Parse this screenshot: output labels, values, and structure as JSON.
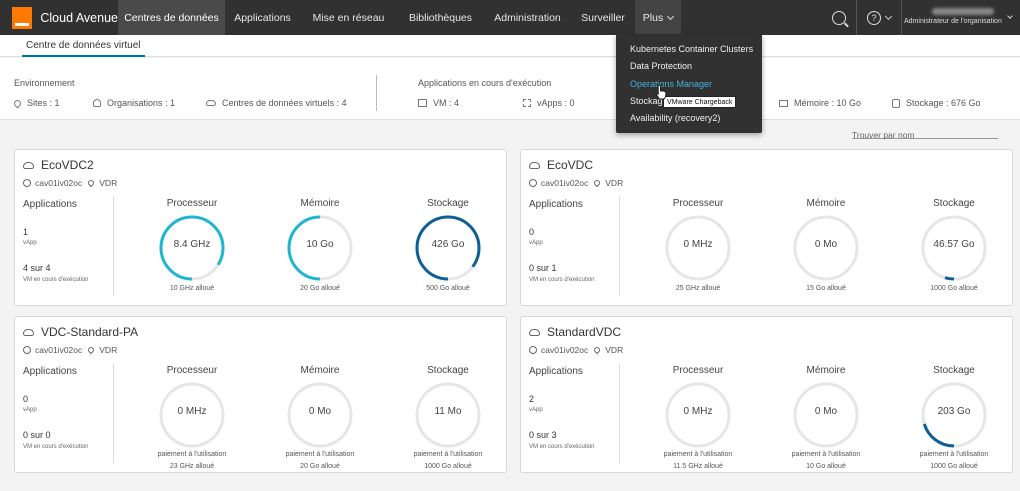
{
  "header": {
    "brand_title": "Cloud Avenue",
    "nav": [
      {
        "label": "Centres de données",
        "active": true
      },
      {
        "label": "Applications"
      },
      {
        "label": "Mise en réseau"
      },
      {
        "label": "Bibliothèques"
      },
      {
        "label": "Administration"
      },
      {
        "label": "Surveiller"
      },
      {
        "label": "Plus"
      }
    ],
    "user_role": "Administrateur de l'organisation"
  },
  "subnav": {
    "tab": "Centre de données virtuel"
  },
  "summary": {
    "env_label": "Environnement",
    "sites": "Sites : 1",
    "organisations": "Organisations : 1",
    "vdcs": "Centres de données virtuels : 4",
    "apps_label": "Applications en cours d'exécution",
    "vm": "VM : 4",
    "vapps": "vApps : 0",
    "memory": "Mémoire : 10 Go",
    "storage": "Stockage : 676 Go"
  },
  "filter": {
    "placeholder": "Trouver par nom"
  },
  "dropdown": {
    "items": [
      "Kubernetes Container Clusters",
      "Data Protection",
      "Operations Manager",
      "Stockage",
      "Availability (recovery2)"
    ],
    "tooltip": "VMware Chargeback"
  },
  "cards": [
    {
      "name": "EcoVDC2",
      "site": "cav01iv02oc",
      "type": "VDR",
      "apps_title": "Applications",
      "vapp_count": "1",
      "vapp_label": "vApp",
      "vm_count": "4 sur 4",
      "vm_label": "VM en cours d'exécution",
      "metrics": [
        {
          "title": "Processeur",
          "value": "8.4 GHz",
          "sub1": "10 GHz alloué",
          "sub2": "",
          "fraction": 0.84,
          "color": "#1fb6cf"
        },
        {
          "title": "Mémoire",
          "value": "10 Go",
          "sub1": "20 Go alloué",
          "sub2": "",
          "fraction": 0.5,
          "color": "#1fb6cf"
        },
        {
          "title": "Stockage",
          "value": "426 Go",
          "sub1": "500 Go alloué",
          "sub2": "",
          "fraction": 0.852,
          "color": "#0f5f96"
        }
      ]
    },
    {
      "name": "EcoVDC",
      "site": "cav01iv02oc",
      "type": "VDR",
      "apps_title": "Applications",
      "vapp_count": "0",
      "vapp_label": "vApp",
      "vm_count": "0 sur 1",
      "vm_label": "VM en cours d'exécution",
      "metrics": [
        {
          "title": "Processeur",
          "value": "0 MHz",
          "sub1": "25 GHz alloué",
          "sub2": "",
          "fraction": 0,
          "color": "#1fb6cf"
        },
        {
          "title": "Mémoire",
          "value": "0 Mo",
          "sub1": "15 Go alloué",
          "sub2": "",
          "fraction": 0,
          "color": "#1fb6cf"
        },
        {
          "title": "Stockage",
          "value": "46.57 Go",
          "sub1": "1000 Go alloué",
          "sub2": "",
          "fraction": 0.047,
          "color": "#0f5f96"
        }
      ]
    },
    {
      "name": "VDC-Standard-PA",
      "site": "cav01iv02oc",
      "type": "VDR",
      "apps_title": "Applications",
      "vapp_count": "0",
      "vapp_label": "vApp",
      "vm_count": "0 sur 0",
      "vm_label": "VM en cours d'exécution",
      "metrics": [
        {
          "title": "Processeur",
          "value": "0 MHz",
          "sub1": "paiement à l'utilisation",
          "sub2": "23 GHz alloué",
          "fraction": 0,
          "color": "#1fb6cf"
        },
        {
          "title": "Mémoire",
          "value": "0 Mo",
          "sub1": "paiement à l'utilisation",
          "sub2": "20 Go alloué",
          "fraction": 0,
          "color": "#1fb6cf"
        },
        {
          "title": "Stockage",
          "value": "11 Mo",
          "sub1": "paiement à l'utilisation",
          "sub2": "1000 Go alloué",
          "fraction": 0,
          "color": "#0f5f96"
        }
      ]
    },
    {
      "name": "StandardVDC",
      "site": "cav01iv02oc",
      "type": "VDR",
      "apps_title": "Applications",
      "vapp_count": "2",
      "vapp_label": "vApp",
      "vm_count": "0 sur 3",
      "vm_label": "VM en cours d'exécution",
      "metrics": [
        {
          "title": "Processeur",
          "value": "0 MHz",
          "sub1": "paiement à l'utilisation",
          "sub2": "11.5 GHz alloué",
          "fraction": 0,
          "color": "#1fb6cf"
        },
        {
          "title": "Mémoire",
          "value": "0 Mo",
          "sub1": "paiement à l'utilisation",
          "sub2": "10 Go alloué",
          "fraction": 0,
          "color": "#1fb6cf"
        },
        {
          "title": "Stockage",
          "value": "203 Go",
          "sub1": "paiement à l'utilisation",
          "sub2": "1000 Go alloué",
          "fraction": 0.203,
          "color": "#0f5f96"
        }
      ]
    }
  ]
}
